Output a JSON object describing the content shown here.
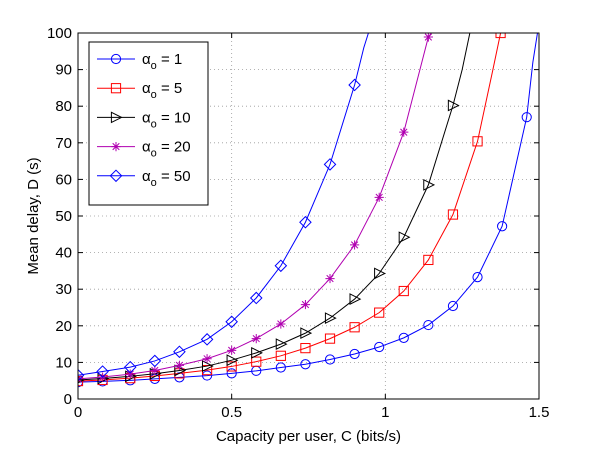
{
  "chart_data": {
    "type": "line",
    "xlabel": "Capacity per user, C (bits/s)",
    "ylabel": "Mean delay, D (s)",
    "xlim": [
      0,
      1.5
    ],
    "ylim": [
      0,
      100
    ],
    "xticks": [
      "0",
      "0.5",
      "1",
      "1.5"
    ],
    "yticks": [
      "0",
      "10",
      "20",
      "30",
      "40",
      "50",
      "60",
      "70",
      "80",
      "90",
      "100"
    ],
    "grid": true,
    "legend_position": "top-left",
    "series": [
      {
        "name": "α_o = 1",
        "name_main": "α",
        "name_sub": "o",
        "name_rest": " = 1",
        "color": "#0000ff",
        "marker": "circle",
        "points": [
          [
            0,
            4.6
          ],
          [
            0.08,
            4.8
          ],
          [
            0.17,
            5.1
          ],
          [
            0.25,
            5.5
          ],
          [
            0.33,
            5.9
          ],
          [
            0.42,
            6.4
          ],
          [
            0.5,
            7.0
          ],
          [
            0.58,
            7.7
          ],
          [
            0.66,
            8.6
          ],
          [
            0.74,
            9.5
          ],
          [
            0.82,
            10.8
          ],
          [
            0.9,
            12.3
          ],
          [
            0.98,
            14.2
          ],
          [
            1.06,
            16.7
          ],
          [
            1.14,
            20.2
          ],
          [
            1.22,
            25.4
          ],
          [
            1.3,
            33.3
          ],
          [
            1.38,
            47.2
          ],
          [
            1.46,
            77.0
          ],
          [
            1.48,
            92
          ],
          [
            1.495,
            100
          ]
        ]
      },
      {
        "name": "α_o = 5",
        "name_main": "α",
        "name_sub": "o",
        "name_rest": " = 5",
        "color": "#ff0000",
        "marker": "square",
        "points": [
          [
            0,
            4.9
          ],
          [
            0.08,
            5.2
          ],
          [
            0.17,
            5.7
          ],
          [
            0.25,
            6.3
          ],
          [
            0.33,
            7.0
          ],
          [
            0.42,
            7.9
          ],
          [
            0.5,
            8.9
          ],
          [
            0.58,
            10.2
          ],
          [
            0.66,
            11.8
          ],
          [
            0.74,
            13.9
          ],
          [
            0.82,
            16.5
          ],
          [
            0.9,
            19.6
          ],
          [
            0.98,
            23.6
          ],
          [
            1.06,
            29.5
          ],
          [
            1.14,
            38.0
          ],
          [
            1.22,
            50.4
          ],
          [
            1.3,
            70.4
          ],
          [
            1.35,
            90
          ],
          [
            1.375,
            100
          ]
        ]
      },
      {
        "name": "α_o = 10",
        "name_main": "α",
        "name_sub": "o",
        "name_rest": " = 10",
        "color": "#000000",
        "marker": "triangle-right",
        "points": [
          [
            0,
            5.2
          ],
          [
            0.08,
            5.6
          ],
          [
            0.17,
            6.2
          ],
          [
            0.25,
            6.9
          ],
          [
            0.33,
            7.8
          ],
          [
            0.42,
            9.0
          ],
          [
            0.5,
            10.6
          ],
          [
            0.58,
            12.6
          ],
          [
            0.66,
            15.0
          ],
          [
            0.74,
            18.0
          ],
          [
            0.82,
            22.1
          ],
          [
            0.9,
            27.3
          ],
          [
            0.98,
            34.3
          ],
          [
            1.06,
            44.2
          ],
          [
            1.14,
            58.5
          ],
          [
            1.22,
            80.2
          ],
          [
            1.25,
            90
          ],
          [
            1.275,
            100
          ]
        ]
      },
      {
        "name": "α_o = 20",
        "name_main": "α",
        "name_sub": "o",
        "name_rest": " = 20",
        "color": "#b000b0",
        "marker": "star",
        "points": [
          [
            0,
            5.5
          ],
          [
            0.08,
            6.0
          ],
          [
            0.17,
            6.8
          ],
          [
            0.25,
            7.8
          ],
          [
            0.33,
            9.2
          ],
          [
            0.42,
            11.0
          ],
          [
            0.5,
            13.3
          ],
          [
            0.58,
            16.5
          ],
          [
            0.66,
            20.5
          ],
          [
            0.74,
            25.8
          ],
          [
            0.82,
            32.9
          ],
          [
            0.9,
            42.1
          ],
          [
            0.98,
            55.1
          ],
          [
            1.06,
            72.9
          ],
          [
            1.14,
            98.9
          ],
          [
            1.15,
            100
          ]
        ]
      },
      {
        "name": "α_o = 50",
        "name_main": "α",
        "name_sub": "o",
        "name_rest": " = 50",
        "color": "#0000ff",
        "marker": "diamond",
        "points": [
          [
            0,
            6.5
          ],
          [
            0.08,
            7.5
          ],
          [
            0.17,
            8.7
          ],
          [
            0.25,
            10.4
          ],
          [
            0.33,
            12.9
          ],
          [
            0.42,
            16.3
          ],
          [
            0.5,
            21.1
          ],
          [
            0.58,
            27.6
          ],
          [
            0.66,
            36.4
          ],
          [
            0.74,
            48.3
          ],
          [
            0.82,
            64.1
          ],
          [
            0.9,
            85.8
          ],
          [
            0.93,
            96
          ],
          [
            0.945,
            100
          ]
        ]
      }
    ]
  }
}
